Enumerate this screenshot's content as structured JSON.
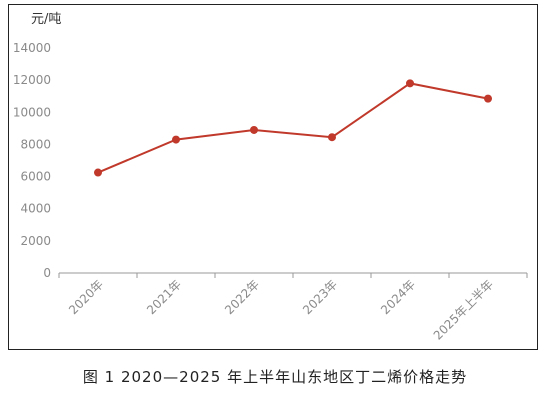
{
  "chart_data": {
    "type": "line",
    "ylabel": "元/吨",
    "categories": [
      "2020年",
      "2021年",
      "2022年",
      "2023年",
      "2024年",
      "2025年上半年"
    ],
    "series": [
      {
        "values": [
          6250,
          8300,
          8900,
          8450,
          11800,
          10850
        ]
      }
    ],
    "ylim": [
      0,
      14000
    ],
    "yticks": [
      0,
      2000,
      4000,
      6000,
      8000,
      10000,
      12000,
      14000
    ],
    "grid": false,
    "legend": "none",
    "colors": {
      "line": "#c0392b",
      "axis": "#999999",
      "text": "#8a8a8a"
    }
  },
  "caption": "图 1  2020—2025 年上半年山东地区丁二烯价格走势"
}
